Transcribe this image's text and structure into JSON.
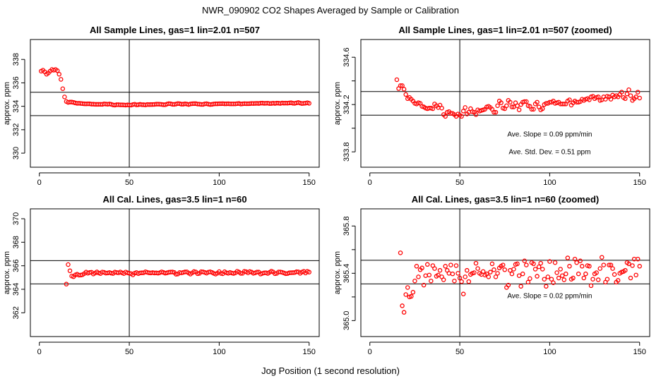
{
  "figure": {
    "title": "NWR_090902  CO2 Shapes Averaged by Sample or Calibration",
    "xlabel": "Jog Position (1 second resolution)"
  },
  "chart_data": [
    {
      "type": "scatter",
      "title": "All Sample Lines, gas=1 lin=2.01 n=507",
      "ylabel": "approx. ppm",
      "xlim": [
        -5,
        155.6
      ],
      "ylim": [
        328.8,
        339.7
      ],
      "xticks": [
        0,
        50,
        100,
        150
      ],
      "xtick_labels": [
        "0",
        "50",
        "100",
        "150"
      ],
      "yticks": [
        330,
        332,
        334,
        336,
        338
      ],
      "ytick_labels": [
        "330",
        "332",
        "334",
        "336",
        "338"
      ],
      "vline": 50,
      "hlines": [
        335.2,
        333.2
      ],
      "series_color": "#ff0000",
      "annotations": [],
      "x_start": 1,
      "values": [
        337.0,
        337.08,
        336.94,
        336.74,
        336.84,
        337.0,
        337.14,
        337.08,
        337.14,
        337.04,
        336.74,
        336.3,
        335.5,
        334.8,
        334.41,
        334.335,
        334.36,
        334.36,
        334.33,
        334.285,
        334.25,
        334.26,
        334.245,
        334.23,
        334.21,
        334.205,
        334.215,
        334.21,
        334.185,
        334.18,
        334.17,
        334.165,
        334.17,
        334.17,
        334.165,
        334.205,
        334.19,
        334.175,
        334.195,
        334.17,
        334.115,
        334.1,
        334.135,
        334.14,
        334.125,
        334.125,
        334.115,
        334.1,
        334.12,
        334.11,
        334.1,
        334.145,
        334.175,
        334.12,
        334.135,
        334.165,
        334.14,
        334.135,
        334.115,
        334.155,
        334.145,
        334.15,
        334.155,
        334.16,
        334.18,
        334.185,
        334.175,
        334.16,
        334.135,
        334.135,
        334.19,
        334.23,
        334.215,
        334.17,
        334.165,
        334.19,
        334.235,
        334.22,
        334.18,
        334.18,
        334.215,
        334.19,
        334.155,
        334.2,
        334.22,
        334.225,
        334.225,
        334.19,
        334.185,
        334.16,
        334.16,
        334.205,
        334.22,
        334.18,
        334.155,
        334.165,
        334.2,
        334.21,
        334.21,
        334.22,
        334.22,
        334.23,
        334.21,
        334.215,
        334.22,
        334.205,
        334.205,
        334.205,
        334.205,
        334.23,
        334.24,
        334.195,
        334.215,
        334.23,
        334.22,
        334.22,
        334.225,
        334.245,
        334.235,
        334.245,
        334.25,
        334.24,
        334.265,
        334.27,
        334.25,
        334.26,
        334.265,
        334.235,
        334.24,
        334.265,
        334.245,
        334.27,
        334.265,
        334.245,
        334.28,
        334.265,
        334.275,
        334.265,
        334.285,
        334.305,
        334.26,
        334.25,
        334.29,
        334.325,
        334.275,
        334.235,
        334.25,
        334.265,
        334.305,
        334.255
      ]
    },
    {
      "type": "scatter",
      "title": "All Sample Lines, gas=1 lin=2.01 n=507 (zoomed)",
      "ylabel": "approx. ppm",
      "xlim": [
        -5,
        155.6
      ],
      "ylim": [
        333.67,
        334.75
      ],
      "xticks": [
        0,
        50,
        100,
        150
      ],
      "xtick_labels": [
        "0",
        "50",
        "100",
        "150"
      ],
      "yticks": [
        333.8,
        334.0,
        334.2,
        334.4,
        334.6
      ],
      "ytick_labels": [
        "333.8",
        "",
        "334.2",
        "",
        "334.6"
      ],
      "vline": 50,
      "hlines": [
        334.31,
        334.11
      ],
      "series_color": "#ff0000",
      "annotations": [
        {
          "text": "Ave. Slope =  0.09  ppm/min",
          "x": 100,
          "y": 333.93
        },
        {
          "text": "Ave. Std. Dev. =  0.51  ppm",
          "x": 100,
          "y": 333.78
        }
      ],
      "x_start": 15,
      "values": [
        334.41,
        334.335,
        334.36,
        334.36,
        334.33,
        334.285,
        334.25,
        334.26,
        334.245,
        334.23,
        334.21,
        334.205,
        334.215,
        334.21,
        334.185,
        334.18,
        334.17,
        334.165,
        334.17,
        334.17,
        334.165,
        334.205,
        334.19,
        334.175,
        334.195,
        334.17,
        334.115,
        334.1,
        334.135,
        334.14,
        334.125,
        334.125,
        334.115,
        334.1,
        334.12,
        334.11,
        334.1,
        334.145,
        334.175,
        334.12,
        334.135,
        334.165,
        334.14,
        334.135,
        334.115,
        334.155,
        334.145,
        334.15,
        334.155,
        334.16,
        334.18,
        334.185,
        334.175,
        334.16,
        334.135,
        334.135,
        334.19,
        334.23,
        334.215,
        334.17,
        334.165,
        334.19,
        334.235,
        334.22,
        334.18,
        334.18,
        334.215,
        334.19,
        334.155,
        334.2,
        334.22,
        334.225,
        334.225,
        334.19,
        334.185,
        334.16,
        334.16,
        334.205,
        334.22,
        334.18,
        334.155,
        334.165,
        334.2,
        334.21,
        334.21,
        334.22,
        334.22,
        334.23,
        334.21,
        334.215,
        334.22,
        334.205,
        334.205,
        334.205,
        334.205,
        334.23,
        334.24,
        334.195,
        334.215,
        334.23,
        334.22,
        334.22,
        334.225,
        334.245,
        334.235,
        334.245,
        334.25,
        334.24,
        334.265,
        334.27,
        334.25,
        334.26,
        334.265,
        334.235,
        334.24,
        334.265,
        334.245,
        334.27,
        334.265,
        334.245,
        334.28,
        334.265,
        334.275,
        334.265,
        334.285,
        334.305,
        334.26,
        334.25,
        334.29,
        334.325,
        334.275,
        334.235,
        334.25,
        334.265,
        334.305,
        334.255
      ]
    },
    {
      "type": "scatter",
      "title": "All Cal. Lines, gas=3.5 lin=1 n=60",
      "ylabel": "approx. ppm",
      "xlim": [
        -5,
        155.6
      ],
      "ylim": [
        359.98,
        370.84
      ],
      "xticks": [
        0,
        50,
        100,
        150
      ],
      "xtick_labels": [
        "0",
        "50",
        "100",
        "150"
      ],
      "yticks": [
        362,
        364,
        366,
        368,
        370
      ],
      "ytick_labels": [
        "362",
        "364",
        "366",
        "368",
        "370"
      ],
      "vline": 50,
      "hlines": [
        366.44,
        364.46
      ],
      "series_color": "#ff0000",
      "annotations": [],
      "x_start": 15,
      "values": [
        364.44,
        366.1,
        365.573,
        365.125,
        365.07,
        365.22,
        365.28,
        365.2,
        365.205,
        365.24,
        365.335,
        365.46,
        365.37,
        365.43,
        365.445,
        365.3,
        365.38,
        365.475,
        365.385,
        365.335,
        365.465,
        365.44,
        365.375,
        365.385,
        365.425,
        365.37,
        365.345,
        365.46,
        365.425,
        365.4,
        365.47,
        365.395,
        365.335,
        365.465,
        365.4,
        365.36,
        365.33,
        365.225,
        365.37,
        365.425,
        365.33,
        365.39,
        365.4,
        365.405,
        365.485,
        365.44,
        365.4,
        365.39,
        365.415,
        365.385,
        365.395,
        365.37,
        365.41,
        365.48,
        365.43,
        365.37,
        365.4,
        365.445,
        365.46,
        365.47,
        365.43,
        365.28,
        365.3,
        365.425,
        365.395,
        365.435,
        365.475,
        365.48,
        365.38,
        365.29,
        365.395,
        365.505,
        365.47,
        365.325,
        365.355,
        365.49,
        365.48,
        365.435,
        365.375,
        365.455,
        365.485,
        365.435,
        365.35,
        365.29,
        365.37,
        365.5,
        365.35,
        365.32,
        365.49,
        365.405,
        365.36,
        365.435,
        365.38,
        365.345,
        365.395,
        365.53,
        365.46,
        365.35,
        365.36,
        365.52,
        365.49,
        365.395,
        365.505,
        365.46,
        365.36,
        365.395,
        365.465,
        365.46,
        365.295,
        365.35,
        365.395,
        365.405,
        365.345,
        365.44,
        365.535,
        365.47,
        365.325,
        365.35,
        365.47,
        365.47,
        365.44,
        365.39,
        365.325,
        365.34,
        365.4,
        365.41,
        365.415,
        365.425,
        365.49,
        365.48,
        365.36,
        365.465,
        365.52,
        365.385,
        365.52,
        365.46
      ]
    },
    {
      "type": "scatter",
      "title": "All Cal. Lines, gas=3.5 lin=1 n=60 (zoomed)",
      "ylabel": "approx. ppm",
      "xlim": [
        -5,
        155.6
      ],
      "ylim": [
        364.865,
        365.945
      ],
      "xticks": [
        0,
        50,
        100,
        150
      ],
      "xtick_labels": [
        "0",
        "50",
        "100",
        "150"
      ],
      "yticks": [
        365.0,
        365.2,
        365.4,
        365.6,
        365.8
      ],
      "ytick_labels": [
        "365.0",
        "",
        "365.4",
        "",
        "365.8"
      ],
      "vline": 50,
      "hlines": [
        365.51,
        365.31
      ],
      "series_color": "#ff0000",
      "annotations": [
        {
          "text": "Ave. Slope =  0.02  ppm/min",
          "x": 100,
          "y": 365.19
        }
      ],
      "x_start": 17,
      "values": [
        365.573,
        365.125,
        365.07,
        365.22,
        365.28,
        365.2,
        365.205,
        365.24,
        365.335,
        365.46,
        365.37,
        365.43,
        365.445,
        365.3,
        365.38,
        365.475,
        365.385,
        365.335,
        365.465,
        365.44,
        365.375,
        365.385,
        365.425,
        365.37,
        365.345,
        365.46,
        365.425,
        365.4,
        365.47,
        365.395,
        365.335,
        365.465,
        365.4,
        365.36,
        365.33,
        365.225,
        365.37,
        365.425,
        365.33,
        365.39,
        365.4,
        365.405,
        365.485,
        365.44,
        365.4,
        365.39,
        365.415,
        365.385,
        365.395,
        365.37,
        365.41,
        365.48,
        365.43,
        365.37,
        365.4,
        365.445,
        365.46,
        365.47,
        365.43,
        365.28,
        365.3,
        365.425,
        365.395,
        365.435,
        365.475,
        365.48,
        365.38,
        365.29,
        365.395,
        365.505,
        365.47,
        365.325,
        365.355,
        365.49,
        365.48,
        365.435,
        365.375,
        365.455,
        365.485,
        365.435,
        365.35,
        365.29,
        365.37,
        365.5,
        365.35,
        365.32,
        365.49,
        365.405,
        365.36,
        365.435,
        365.38,
        365.345,
        365.395,
        365.53,
        365.46,
        365.35,
        365.36,
        365.52,
        365.49,
        365.395,
        365.505,
        365.46,
        365.36,
        365.395,
        365.465,
        365.46,
        365.295,
        365.35,
        365.395,
        365.405,
        365.345,
        365.44,
        365.535,
        365.47,
        365.325,
        365.35,
        365.47,
        365.47,
        365.44,
        365.39,
        365.325,
        365.34,
        365.4,
        365.41,
        365.415,
        365.425,
        365.49,
        365.48,
        365.36,
        365.465,
        365.52,
        365.385,
        365.52,
        365.46
      ]
    }
  ]
}
